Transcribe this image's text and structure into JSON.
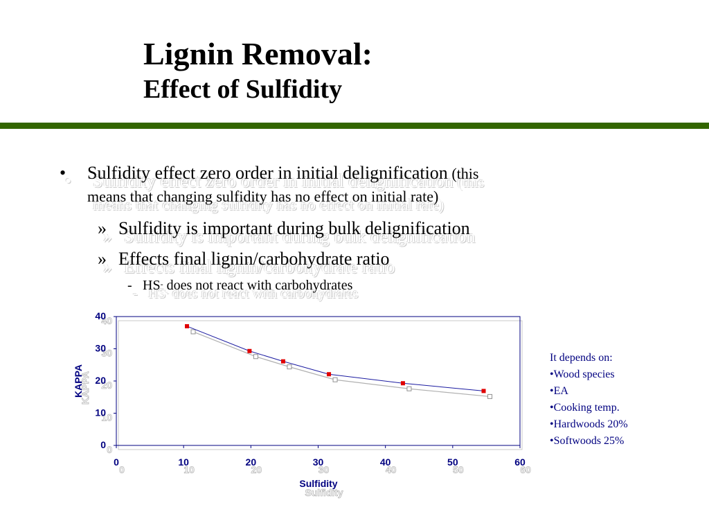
{
  "title": {
    "main": "Lignin Removal:",
    "sub": "Effect of Sulfidity"
  },
  "colors": {
    "rule": "#336600",
    "axis": "#000080",
    "series_line": "#1a1aa0",
    "series_marker": "#e00000",
    "shadow_line": "#b0b0b0"
  },
  "bullets": {
    "b1_marker": "•",
    "b1_main": "Sulfidity effect zero order in initial delignification",
    "b1_note_open": " (this",
    "b1_line2": "means that changing sulfidity has no effect on initial rate)",
    "b2_marker": "»",
    "b2_text": "Sulfidity is important during bulk delignification",
    "b3_marker": "»",
    "b3_text": "Effects final lignin/carbohydrate ratio",
    "b4_marker": "-",
    "b4_text_pre": "HS",
    "b4_sup": "-",
    "b4_text_post": " does not react with carbohydrates"
  },
  "notes": {
    "heading": "It depends on:",
    "items": [
      "•Wood species",
      "•EA",
      "•Cooking temp.",
      "•Hardwoods 20%",
      "•Softwoods 25%"
    ]
  },
  "chart_data": {
    "type": "line",
    "title": "",
    "xlabel": "Sulfidity",
    "ylabel": "KAPPA",
    "xlim": [
      0,
      60
    ],
    "ylim": [
      0,
      40
    ],
    "xticks": [
      0,
      10,
      20,
      30,
      40,
      50,
      60
    ],
    "yticks": [
      0,
      10,
      20,
      30,
      40
    ],
    "grid": false,
    "series": [
      {
        "name": "KAPPA",
        "x": [
          10.5,
          19.8,
          24.8,
          31.6,
          42.6,
          54.6
        ],
        "y": [
          37,
          29.3,
          26.1,
          22.1,
          19.3,
          16.9
        ]
      }
    ]
  }
}
